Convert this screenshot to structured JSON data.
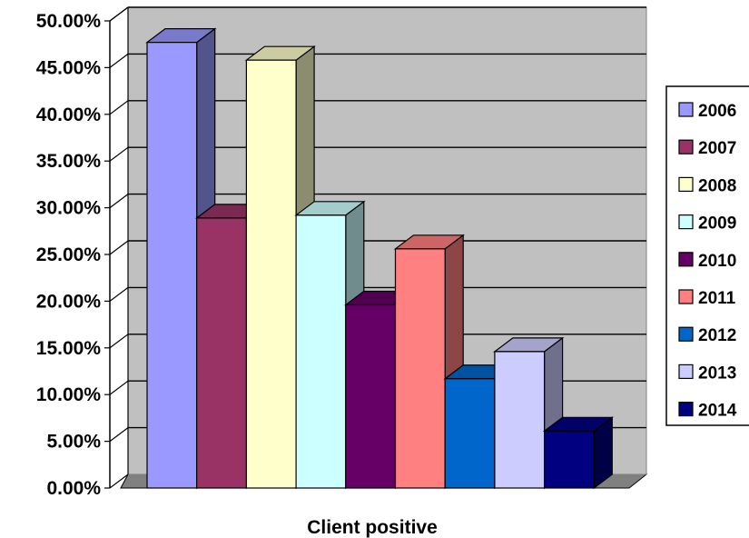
{
  "chart_data": {
    "type": "bar",
    "xlabel": "Client positive",
    "ylabel": "",
    "ylim": [
      0,
      50
    ],
    "y_unit": "%",
    "y_ticks": [
      "0.00%",
      "5.00%",
      "10.00%",
      "15.00%",
      "20.00%",
      "25.00%",
      "30.00%",
      "35.00%",
      "40.00%",
      "45.00%",
      "50.00%"
    ],
    "legend_position": "right",
    "grid": true,
    "three_d": true,
    "categories": [
      "Client positive"
    ],
    "series": [
      {
        "name": "2006",
        "values": [
          47.7
        ],
        "color": "#9999FF"
      },
      {
        "name": "2007",
        "values": [
          28.9
        ],
        "color": "#993366"
      },
      {
        "name": "2008",
        "values": [
          45.8
        ],
        "color": "#FFFFCC"
      },
      {
        "name": "2009",
        "values": [
          29.2
        ],
        "color": "#CCFFFF"
      },
      {
        "name": "2010",
        "values": [
          19.6
        ],
        "color": "#660066"
      },
      {
        "name": "2011",
        "values": [
          25.6
        ],
        "color": "#FF8080"
      },
      {
        "name": "2012",
        "values": [
          11.7
        ],
        "color": "#0066CC"
      },
      {
        "name": "2013",
        "values": [
          14.6
        ],
        "color": "#CCCCFF"
      },
      {
        "name": "2014",
        "values": [
          6.1
        ],
        "color": "#000080"
      }
    ]
  }
}
